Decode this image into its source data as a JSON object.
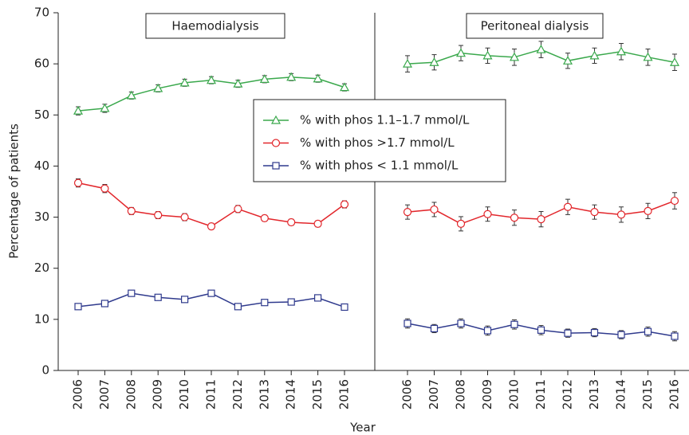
{
  "chart_data": {
    "type": "line",
    "y_label": "Percentage of patients",
    "x_label": "Year",
    "ylim": [
      0,
      70
    ],
    "yticks": [
      0,
      10,
      20,
      30,
      40,
      50,
      60,
      70
    ],
    "legend_position": "center",
    "series": [
      {
        "name": "% with phos 1.1–1.7 mmol/L",
        "color": "#3aa84c",
        "marker": "triangle"
      },
      {
        "name": "% with phos >1.7 mmol/L",
        "color": "#e2262b",
        "marker": "circle"
      },
      {
        "name": "% with phos < 1.1 mmol/L",
        "color": "#2f3a8d",
        "marker": "square"
      }
    ],
    "panels": [
      {
        "title": "Haemodialysis",
        "categories": [
          "2006",
          "2007",
          "2008",
          "2009",
          "2010",
          "2011",
          "2012",
          "2013",
          "2014",
          "2015",
          "2016"
        ],
        "series": [
          {
            "values": [
              50.8,
              51.3,
              53.8,
              55.2,
              56.3,
              56.8,
              56.1,
              57.0,
              57.4,
              57.1,
              55.4
            ],
            "errors": [
              0.8,
              0.8,
              0.7,
              0.7,
              0.7,
              0.7,
              0.7,
              0.7,
              0.7,
              0.7,
              0.7
            ]
          },
          {
            "values": [
              36.7,
              35.6,
              31.2,
              30.4,
              30.0,
              28.2,
              31.6,
              29.8,
              29.0,
              28.7,
              32.5
            ],
            "errors": [
              0.8,
              0.8,
              0.7,
              0.7,
              0.7,
              0.6,
              0.7,
              0.6,
              0.6,
              0.6,
              0.7
            ]
          },
          {
            "values": [
              12.5,
              13.1,
              15.1,
              14.3,
              13.9,
              15.1,
              12.5,
              13.3,
              13.4,
              14.2,
              12.4
            ],
            "errors": [
              0.5,
              0.5,
              0.5,
              0.5,
              0.5,
              0.5,
              0.4,
              0.4,
              0.4,
              0.5,
              0.4
            ]
          }
        ]
      },
      {
        "title": "Peritoneal dialysis",
        "categories": [
          "2006",
          "2007",
          "2008",
          "2009",
          "2010",
          "2011",
          "2012",
          "2013",
          "2014",
          "2015",
          "2016"
        ],
        "series": [
          {
            "values": [
              60.0,
              60.3,
              62.1,
              61.6,
              61.3,
              62.8,
              60.6,
              61.6,
              62.4,
              61.3,
              60.3
            ],
            "errors": [
              1.6,
              1.5,
              1.5,
              1.5,
              1.6,
              1.6,
              1.5,
              1.5,
              1.6,
              1.6,
              1.6
            ]
          },
          {
            "values": [
              31.0,
              31.5,
              28.7,
              30.6,
              29.9,
              29.6,
              32.0,
              31.0,
              30.5,
              31.2,
              33.2
            ],
            "errors": [
              1.4,
              1.4,
              1.4,
              1.4,
              1.5,
              1.5,
              1.5,
              1.4,
              1.5,
              1.5,
              1.6
            ]
          },
          {
            "values": [
              9.2,
              8.2,
              9.2,
              7.8,
              9.0,
              7.9,
              7.3,
              7.4,
              7.0,
              7.6,
              6.7
            ],
            "errors": [
              0.9,
              0.8,
              0.9,
              0.9,
              0.9,
              0.9,
              0.8,
              0.8,
              0.8,
              0.9,
              0.9
            ]
          }
        ]
      }
    ]
  }
}
